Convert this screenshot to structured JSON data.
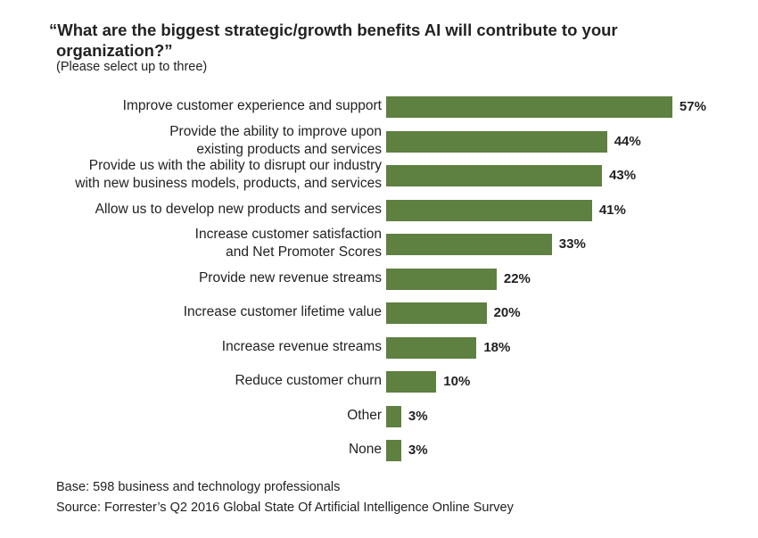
{
  "chart_data": {
    "type": "bar",
    "orientation": "horizontal",
    "title": "“What are the biggest strategic/growth benefits AI will contribute to your organization?”",
    "subtitle": "(Please select up to three)",
    "categories": [
      "Improve customer experience and support",
      "Provide the ability to improve upon\nexisting products and services",
      "Provide us with the ability to disrupt our industry\nwith new business models, products, and services",
      "Allow us to develop new products and services",
      "Increase customer satisfaction\nand Net Promoter Scores",
      "Provide new revenue streams",
      "Increase customer lifetime value",
      "Increase revenue streams",
      "Reduce customer churn",
      "Other",
      "None"
    ],
    "values": [
      57,
      44,
      43,
      41,
      33,
      22,
      20,
      18,
      10,
      3,
      3
    ],
    "value_labels": [
      "57%",
      "44%",
      "43%",
      "41%",
      "33%",
      "22%",
      "20%",
      "18%",
      "10%",
      "3%",
      "3%"
    ],
    "color": "#5e8040",
    "notes": [
      "Base: 598 business and technology professionals",
      "Source: Forrester’s Q2 2016 Global State Of Artificial Intelligence Online Survey"
    ]
  }
}
